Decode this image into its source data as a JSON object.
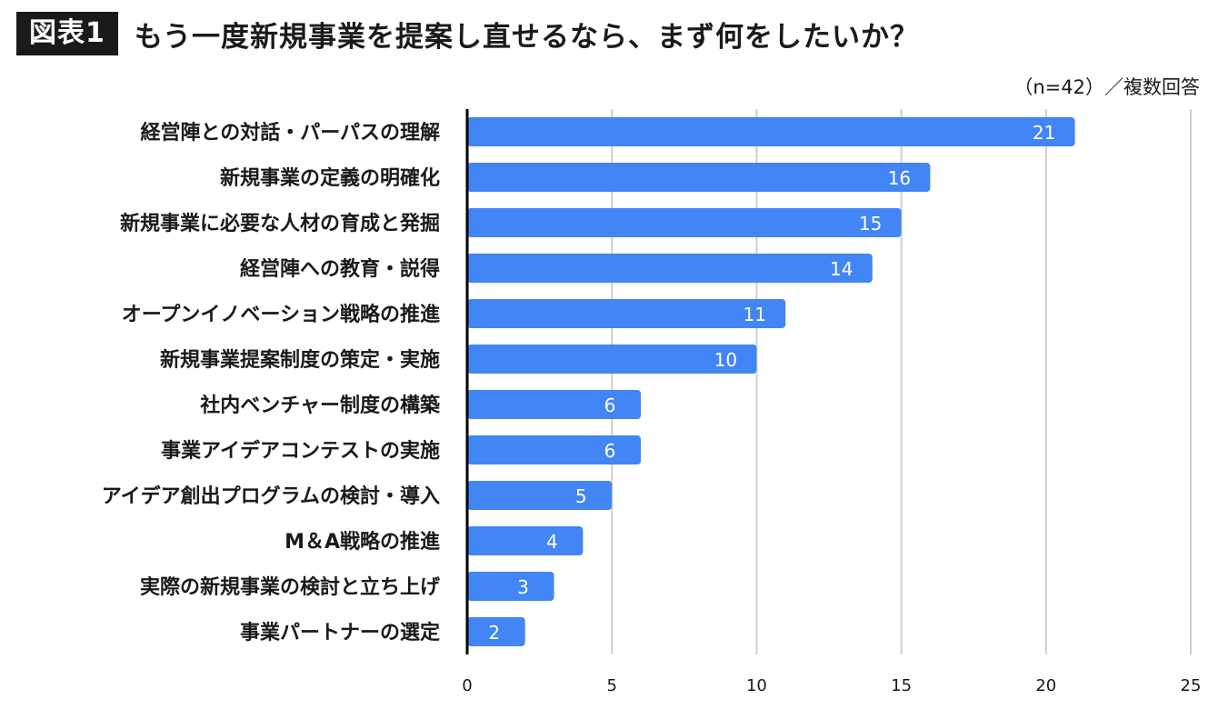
{
  "header": {
    "badge": "図表1",
    "title": "もう一度新規事業を提案し直せるなら、まず何をしたいか？"
  },
  "note": "（n=42）／複数回答",
  "colors": {
    "bar": "#4285F4",
    "axis": "#000000",
    "grid": "#cfcfcf"
  },
  "chart_data": {
    "type": "bar",
    "orientation": "horizontal",
    "categories": [
      "経営陣との対話・パーパスの理解",
      "新規事業の定義の明確化",
      "新規事業に必要な人材の育成と発掘",
      "経営陣への教育・説得",
      "オープンイノベーション戦略の推進",
      "新規事業提案制度の策定・実施",
      "社内ベンチャー制度の構築",
      "事業アイデアコンテストの実施",
      "アイデア創出プログラムの検討・導入",
      "M＆A戦略の推進",
      "実際の新規事業の検討と立ち上げ",
      "事業パートナーの選定"
    ],
    "values": [
      21,
      16,
      15,
      14,
      11,
      10,
      6,
      6,
      5,
      4,
      3,
      2
    ],
    "xlim": [
      0,
      25
    ],
    "xticks": [
      0,
      5,
      10,
      15,
      20,
      25
    ],
    "grid": true,
    "data_labels": true
  }
}
